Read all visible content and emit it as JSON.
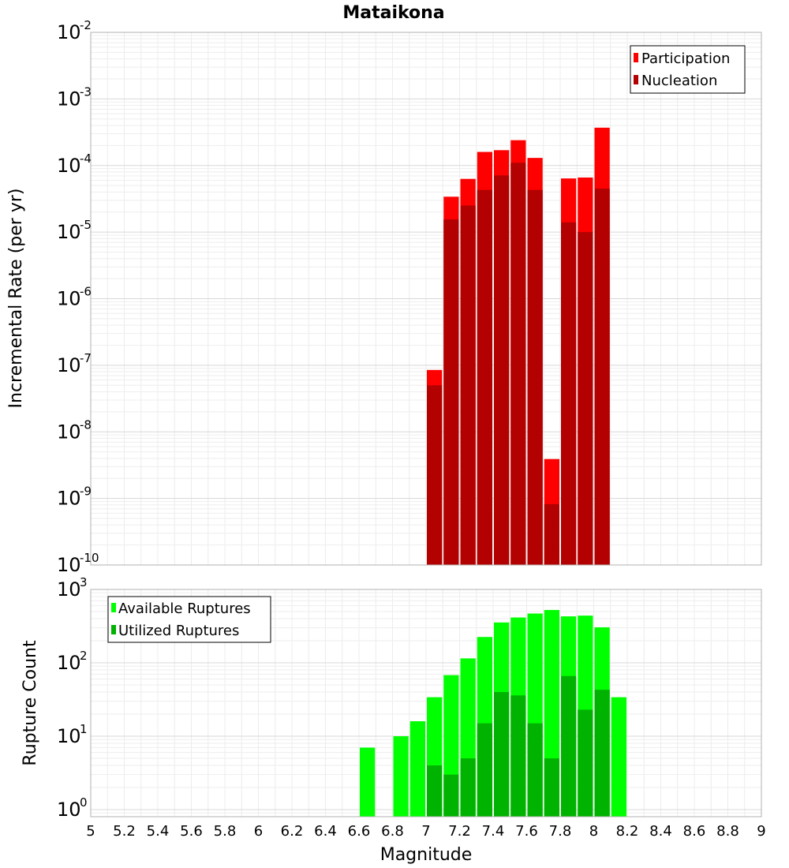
{
  "chart_data": {
    "title": "Mataikona",
    "xlabel": "Magnitude",
    "xlim": [
      5,
      9
    ],
    "x_ticks": [
      "5",
      "5.2",
      "5.4",
      "5.6",
      "5.8",
      "6",
      "6.2",
      "6.4",
      "6.6",
      "6.8",
      "7",
      "7.2",
      "7.4",
      "7.6",
      "7.8",
      "8",
      "8.2",
      "8.4",
      "8.6",
      "8.8",
      "9"
    ],
    "bin_width": 0.1,
    "grid": true,
    "panels": [
      {
        "type": "bar",
        "scale": "log",
        "ylabel": "Incremental Rate (per yr)",
        "ylim": [
          1e-10,
          0.01
        ],
        "y_ticks": [
          {
            "base": "10",
            "exp": "-10"
          },
          {
            "base": "10",
            "exp": "-9"
          },
          {
            "base": "10",
            "exp": "-8"
          },
          {
            "base": "10",
            "exp": "-7"
          },
          {
            "base": "10",
            "exp": "-6"
          },
          {
            "base": "10",
            "exp": "-5"
          },
          {
            "base": "10",
            "exp": "-4"
          },
          {
            "base": "10",
            "exp": "-3"
          },
          {
            "base": "10",
            "exp": "-2"
          }
        ],
        "legend_position": "top-right",
        "series": [
          {
            "name": "Participation",
            "color": "#ff0000",
            "x": [
              7.0,
              7.1,
              7.2,
              7.3,
              7.4,
              7.5,
              7.6,
              7.7,
              7.8,
              7.9,
              8.0
            ],
            "values": [
              8.5e-08,
              3.4e-05,
              6.3e-05,
              0.00016,
              0.00017,
              0.00024,
              0.00013,
              3.9e-09,
              6.4e-05,
              6.6e-05,
              0.00037
            ]
          },
          {
            "name": "Nucleation",
            "color": "#b30000",
            "x": [
              7.0,
              7.1,
              7.2,
              7.3,
              7.4,
              7.5,
              7.6,
              7.7,
              7.8,
              7.9,
              8.0
            ],
            "values": [
              5e-08,
              1.55e-05,
              2.5e-05,
              4.3e-05,
              7.1e-05,
              0.00011,
              4.3e-05,
              8.2e-10,
              1.4e-05,
              1e-05,
              4.5e-05
            ]
          }
        ]
      },
      {
        "type": "bar",
        "scale": "log",
        "ylabel": "Rupture Count",
        "ylim": [
          0.8,
          1000
        ],
        "y_ticks": [
          {
            "base": "10",
            "exp": "0"
          },
          {
            "base": "10",
            "exp": "1"
          },
          {
            "base": "10",
            "exp": "2"
          },
          {
            "base": "10",
            "exp": "3"
          }
        ],
        "legend_position": "top-left",
        "series": [
          {
            "name": "Available Ruptures",
            "color": "#00ff00",
            "x": [
              6.6,
              6.8,
              6.9,
              7.0,
              7.1,
              7.2,
              7.3,
              7.4,
              7.5,
              7.6,
              7.7,
              7.8,
              7.9,
              8.0,
              8.1
            ],
            "values": [
              7,
              10,
              16,
              34,
              68,
              115,
              225,
              355,
              415,
              470,
              525,
              430,
              440,
              305,
              34
            ]
          },
          {
            "name": "Utilized Ruptures",
            "color": "#00b300",
            "x": [
              7.0,
              7.1,
              7.2,
              7.3,
              7.4,
              7.5,
              7.6,
              7.7,
              7.8,
              7.9,
              8.0
            ],
            "values": [
              4,
              3,
              5,
              15,
              40,
              36,
              15,
              5,
              66,
              23,
              43
            ]
          }
        ]
      }
    ]
  }
}
